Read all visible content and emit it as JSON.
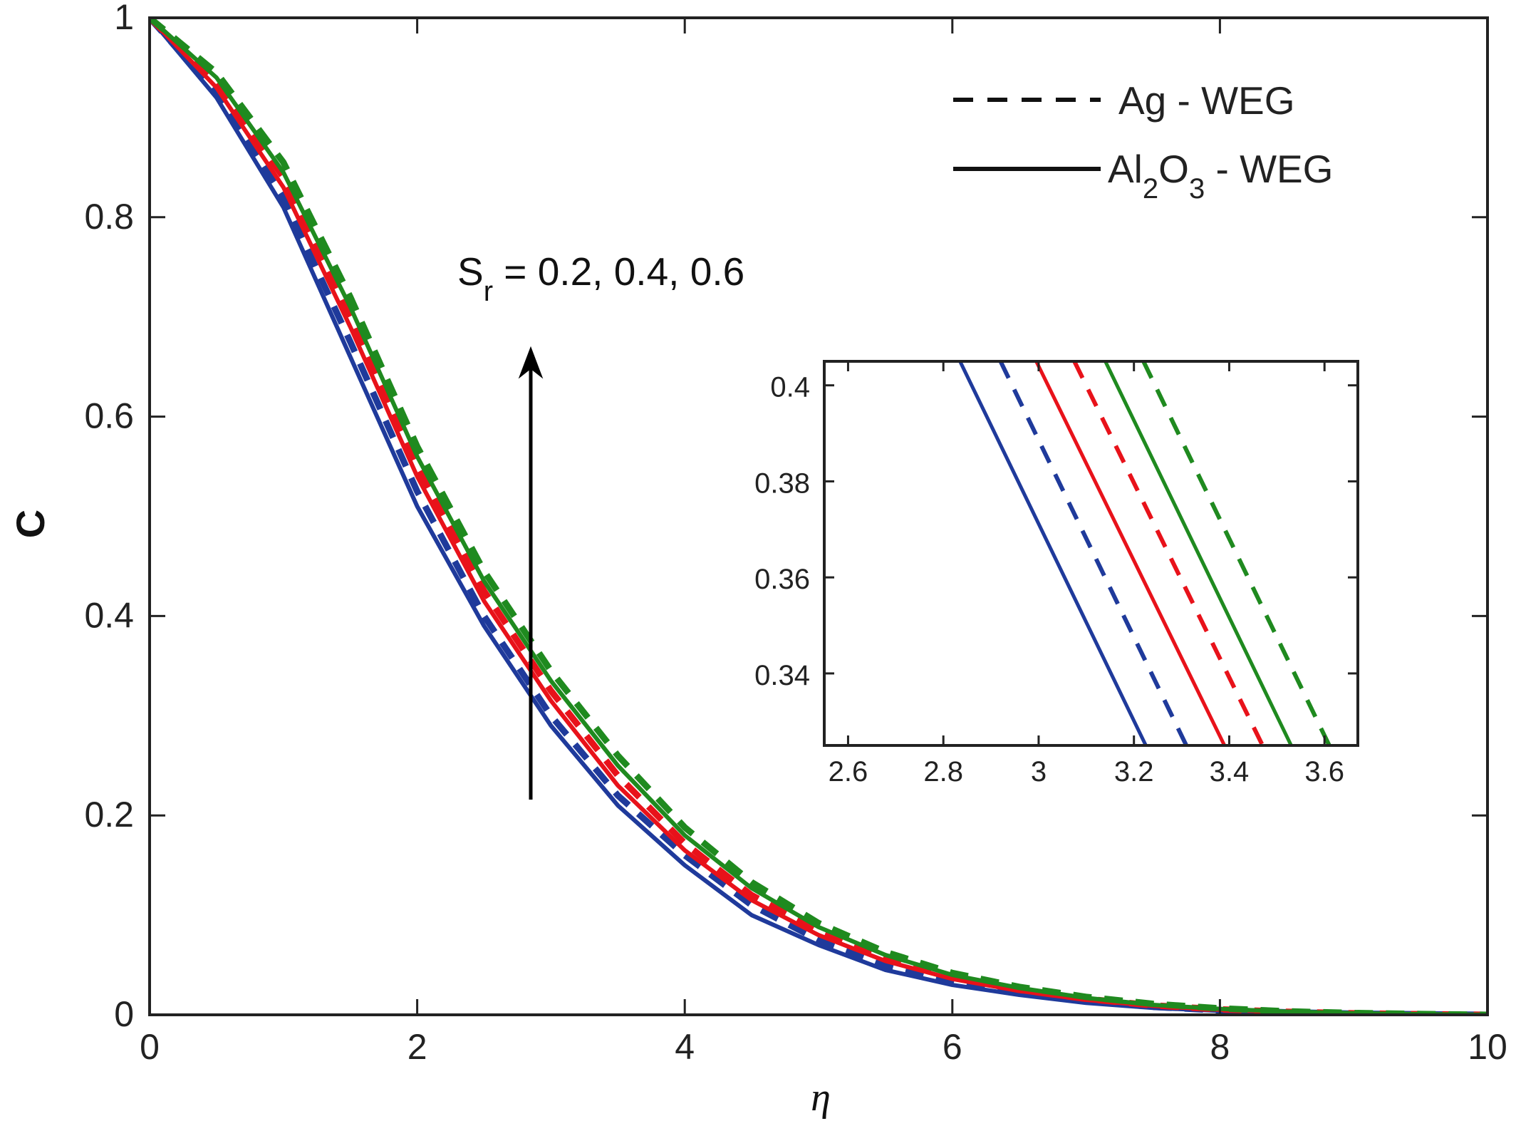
{
  "chart_data": [
    {
      "type": "line",
      "xlabel": "η",
      "ylabel": "C",
      "xlim": [
        0,
        10
      ],
      "ylim": [
        0,
        1
      ],
      "xticks": [
        0,
        2,
        4,
        6,
        8,
        10
      ],
      "yticks": [
        0,
        0.2,
        0.4,
        0.6,
        0.8,
        1
      ],
      "xtick_labels": [
        "0",
        "2",
        "4",
        "6",
        "8",
        "10"
      ],
      "ytick_labels": [
        "0",
        "0.2",
        "0.4",
        "0.6",
        "0.8",
        "1"
      ],
      "grid": false,
      "legend_position": "top-right",
      "legend": [
        {
          "label": "Ag - WEG",
          "style": "dashed"
        },
        {
          "label_main": "Al",
          "sub1": "2",
          "mid": "O",
          "sub2": "3",
          "tail": " - WEG",
          "style": "solid"
        }
      ],
      "annotation": {
        "label_main": "S",
        "label_sub": "r",
        "label_tail": " = 0.2, 0.4, 0.6",
        "arrow": "up"
      },
      "x": [
        0,
        0.5,
        1,
        1.5,
        2,
        2.5,
        3,
        3.5,
        4,
        4.5,
        5,
        5.5,
        6,
        6.5,
        7,
        7.5,
        8,
        8.5,
        9,
        9.5,
        10
      ],
      "series": [
        {
          "color": "#1f3a9b",
          "style": "solid",
          "values": [
            1.0,
            0.92,
            0.81,
            0.66,
            0.51,
            0.39,
            0.29,
            0.21,
            0.15,
            0.1,
            0.07,
            0.045,
            0.03,
            0.02,
            0.012,
            0.007,
            0.004,
            0.002,
            0.001,
            0.0005,
            0.0
          ]
        },
        {
          "color": "#1f3a9b",
          "style": "dashed",
          "values": [
            1.0,
            0.925,
            0.82,
            0.675,
            0.525,
            0.4,
            0.3,
            0.22,
            0.16,
            0.11,
            0.075,
            0.05,
            0.033,
            0.022,
            0.014,
            0.008,
            0.0045,
            0.0025,
            0.0012,
            0.0005,
            0.0
          ]
        },
        {
          "color": "#e8121a",
          "style": "solid",
          "values": [
            1.0,
            0.93,
            0.83,
            0.69,
            0.54,
            0.415,
            0.315,
            0.23,
            0.165,
            0.115,
            0.08,
            0.054,
            0.036,
            0.024,
            0.015,
            0.009,
            0.005,
            0.0028,
            0.0014,
            0.0006,
            0.0
          ]
        },
        {
          "color": "#e8121a",
          "style": "dashed",
          "values": [
            1.0,
            0.935,
            0.84,
            0.7,
            0.55,
            0.425,
            0.325,
            0.24,
            0.172,
            0.12,
            0.084,
            0.057,
            0.038,
            0.025,
            0.016,
            0.0095,
            0.0055,
            0.003,
            0.0015,
            0.0006,
            0.0
          ]
        },
        {
          "color": "#1f8a1f",
          "style": "solid",
          "values": [
            1.0,
            0.94,
            0.845,
            0.71,
            0.56,
            0.435,
            0.335,
            0.25,
            0.18,
            0.127,
            0.088,
            0.06,
            0.04,
            0.027,
            0.017,
            0.01,
            0.006,
            0.0032,
            0.0016,
            0.0007,
            0.0
          ]
        },
        {
          "color": "#1f8a1f",
          "style": "dashed",
          "values": [
            1.0,
            0.945,
            0.855,
            0.72,
            0.57,
            0.445,
            0.345,
            0.26,
            0.188,
            0.133,
            0.092,
            0.063,
            0.042,
            0.028,
            0.018,
            0.011,
            0.0065,
            0.0035,
            0.0018,
            0.0008,
            0.0
          ]
        }
      ]
    },
    {
      "type": "line",
      "xlim": [
        2.55,
        3.67
      ],
      "ylim": [
        0.325,
        0.405
      ],
      "xticks": [
        2.6,
        2.8,
        3,
        3.2,
        3.4,
        3.6
      ],
      "yticks": [
        0.34,
        0.36,
        0.38,
        0.4
      ],
      "xtick_labels": [
        "2.6",
        "2.8",
        "3",
        "3.2",
        "3.4",
        "3.6"
      ],
      "ytick_labels": [
        "0.34",
        "0.36",
        "0.38",
        "0.4"
      ],
      "grid": false,
      "series": [
        {
          "color": "#1f3a9b",
          "style": "solid",
          "x": [
            2.835,
            3.225
          ],
          "values": [
            0.405,
            0.325
          ]
        },
        {
          "color": "#1f3a9b",
          "style": "dashed",
          "x": [
            2.92,
            3.31
          ],
          "values": [
            0.405,
            0.325
          ]
        },
        {
          "color": "#e8121a",
          "style": "solid",
          "x": [
            2.995,
            3.39
          ],
          "values": [
            0.405,
            0.325
          ]
        },
        {
          "color": "#e8121a",
          "style": "dashed",
          "x": [
            3.075,
            3.47
          ],
          "values": [
            0.405,
            0.325
          ]
        },
        {
          "color": "#1f8a1f",
          "style": "solid",
          "x": [
            3.14,
            3.53
          ],
          "values": [
            0.405,
            0.325
          ]
        },
        {
          "color": "#1f8a1f",
          "style": "dashed",
          "x": [
            3.22,
            3.61
          ],
          "values": [
            0.405,
            0.325
          ]
        }
      ]
    }
  ]
}
